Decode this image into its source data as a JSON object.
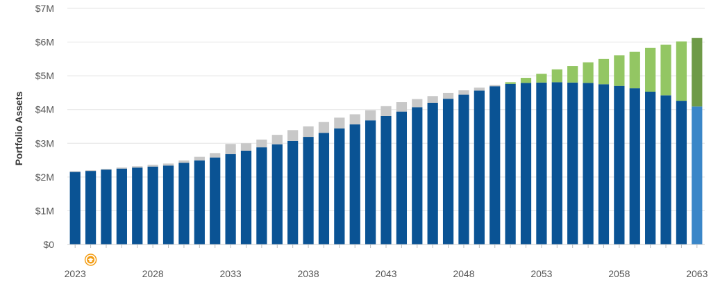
{
  "chart_data": {
    "type": "bar",
    "stacked": true,
    "ylabel": "Portfolio Assets",
    "xlabel": "",
    "ylim": [
      0,
      7000000
    ],
    "yticks": [
      0,
      1000000,
      2000000,
      3000000,
      4000000,
      5000000,
      6000000,
      7000000
    ],
    "ytick_labels": [
      "$0",
      "$1M",
      "$2M",
      "$3M",
      "$4M",
      "$5M",
      "$6M",
      "$7M"
    ],
    "xtick_labels": [
      "2023",
      "2028",
      "2033",
      "2038",
      "2043",
      "2048",
      "2053",
      "2058",
      "2063"
    ],
    "grid": true,
    "marker": {
      "year": 2024,
      "icon": "graduation-cap-icon",
      "color": "#f39c12"
    },
    "colors": {
      "blue": "#0a5394",
      "gray": "#c8c8c8",
      "green": "#93c663",
      "last_blue": "#3a86c8",
      "last_green": "#6e9a47"
    },
    "categories": [
      2023,
      2024,
      2025,
      2026,
      2027,
      2028,
      2029,
      2030,
      2031,
      2032,
      2033,
      2034,
      2035,
      2036,
      2037,
      2038,
      2039,
      2040,
      2041,
      2042,
      2043,
      2044,
      2045,
      2046,
      2047,
      2048,
      2049,
      2050,
      2051,
      2052,
      2053,
      2054,
      2055,
      2056,
      2057,
      2058,
      2059,
      2060,
      2061,
      2062,
      2063
    ],
    "series": [
      {
        "values": [
          2.15,
          2.18,
          2.22,
          2.25,
          2.28,
          2.31,
          2.34,
          2.42,
          2.49,
          2.58,
          2.68,
          2.78,
          2.88,
          2.97,
          3.07,
          3.19,
          3.31,
          3.44,
          3.56,
          3.68,
          3.81,
          3.94,
          4.07,
          4.2,
          4.32,
          4.44,
          4.56,
          4.69,
          4.76,
          4.79,
          4.8,
          4.81,
          4.8,
          4.79,
          4.75,
          4.7,
          4.63,
          4.53,
          4.42,
          4.26,
          4.09
        ]
      },
      {
        "values": [
          0.02,
          0.02,
          0.02,
          0.03,
          0.04,
          0.05,
          0.06,
          0.07,
          0.11,
          0.13,
          0.3,
          0.22,
          0.23,
          0.28,
          0.32,
          0.31,
          0.32,
          0.32,
          0.3,
          0.3,
          0.29,
          0.28,
          0.24,
          0.2,
          0.17,
          0.13,
          0.09,
          0.04,
          0,
          0,
          0,
          0,
          0,
          0,
          0,
          0,
          0,
          0,
          0,
          0,
          0
        ]
      },
      {
        "values": [
          0,
          0,
          0,
          0,
          0,
          0,
          0,
          0,
          0,
          0,
          0,
          0,
          0,
          0,
          0,
          0,
          0,
          0,
          0,
          0,
          0,
          0,
          0,
          0,
          0,
          0,
          0,
          0,
          0.05,
          0.15,
          0.26,
          0.38,
          0.49,
          0.61,
          0.75,
          0.91,
          1.08,
          1.3,
          1.5,
          1.76,
          2.03
        ]
      }
    ],
    "value_unit": "millions"
  }
}
